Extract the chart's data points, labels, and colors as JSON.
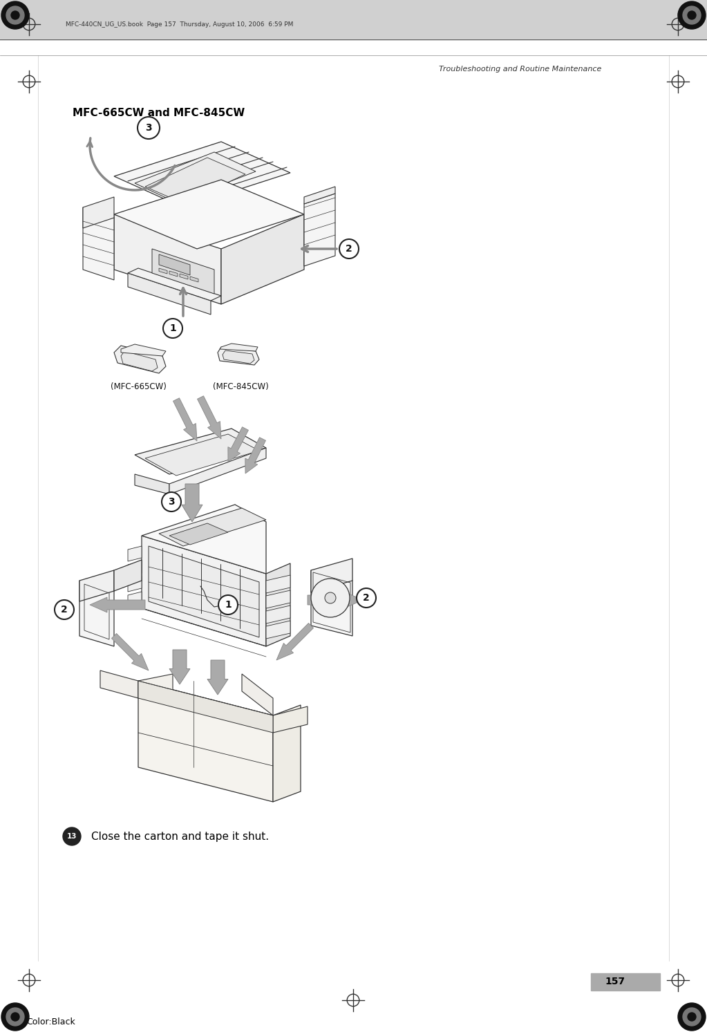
{
  "page_width": 10.23,
  "page_height": 14.93,
  "dpi": 100,
  "bg": "#ffffff",
  "header_bar_color": "#d0d0d0",
  "header_text": "MFC-440CN_UG_US.book  Page 157  Thursday, August 10, 2006  6:59 PM",
  "right_header_text": "Troubleshooting and Routine Maintenance",
  "section_title": "MFC-665CW and MFC-845CW",
  "footer_text": "157",
  "bottom_text": "Color:Black",
  "step13_text": "Close the carton and tape it shut.",
  "lc": "#333333",
  "gray_arrow": "#aaaaaa"
}
